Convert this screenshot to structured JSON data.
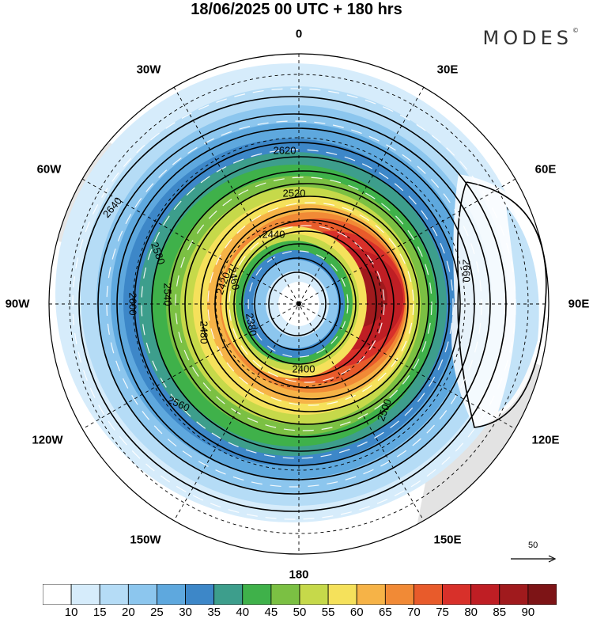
{
  "header": {
    "title": "18/06/2025  00 UTC  + 180 hrs",
    "brand": "MODES",
    "brand_mark": "©"
  },
  "map": {
    "projection": "polar stereographic (south pole)",
    "longitude_labels": {
      "top": "0",
      "top_right": "30E",
      "upper_right": "60E",
      "right": "90E",
      "lower_right": "120E",
      "bottom_right": "150E",
      "bottom": "180",
      "bottom_left": "150W",
      "lower_left": "120W",
      "left": "90W",
      "upper_left": "60W",
      "top_left": "30W"
    },
    "contour_labels": [
      "2620",
      "2640",
      "2660",
      "2600",
      "2580",
      "2560",
      "2540",
      "2520",
      "2500",
      "2480",
      "2460",
      "2440",
      "2420",
      "2400",
      "2380"
    ],
    "wind_reference": {
      "label": "50"
    }
  },
  "colorbar": {
    "labels": [
      "10",
      "15",
      "20",
      "25",
      "30",
      "35",
      "40",
      "45",
      "50",
      "55",
      "60",
      "65",
      "70",
      "75",
      "80",
      "85",
      "90"
    ],
    "colors": [
      "#ffffff",
      "#d6ecfb",
      "#b5dcf6",
      "#8cc6ee",
      "#5ea8de",
      "#3d87c8",
      "#3d9e8c",
      "#3fb14a",
      "#7bc043",
      "#c6d94a",
      "#f5e15b",
      "#f6b347",
      "#f18a36",
      "#e85b2b",
      "#d8302a",
      "#bf1e24",
      "#a01a1d",
      "#7d1416"
    ]
  }
}
